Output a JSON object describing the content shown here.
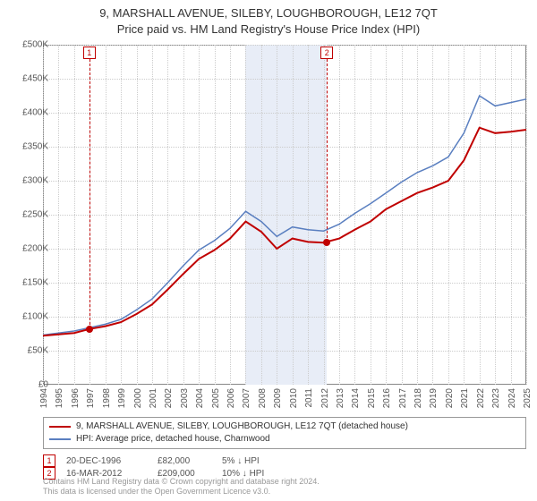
{
  "title_line1": "9, MARSHALL AVENUE, SILEBY, LOUGHBOROUGH, LE12 7QT",
  "title_line2": "Price paid vs. HM Land Registry's House Price Index (HPI)",
  "chart": {
    "type": "line",
    "x_years": [
      1994,
      1995,
      1996,
      1997,
      1998,
      1999,
      2000,
      2001,
      2002,
      2003,
      2004,
      2005,
      2006,
      2007,
      2008,
      2009,
      2010,
      2011,
      2012,
      2013,
      2014,
      2015,
      2016,
      2017,
      2018,
      2019,
      2020,
      2021,
      2022,
      2023,
      2024,
      2025
    ],
    "x_min_year": 1994,
    "x_max_year": 2025,
    "ylim": [
      0,
      500000
    ],
    "ytick_step": 50000,
    "y_ticks": [
      "£0",
      "£50K",
      "£100K",
      "£150K",
      "£200K",
      "£250K",
      "£300K",
      "£350K",
      "£400K",
      "£450K",
      "£500K"
    ],
    "grid_color": "#cccccc",
    "background_color": "#ffffff",
    "border_color": "#888888",
    "title_fontsize": 13,
    "tick_fontsize": 10,
    "shaded_band": {
      "start_year": 2007.0,
      "end_year": 2012.2,
      "color": "#e8edf7"
    },
    "series": {
      "property": {
        "label": "9, MARSHALL AVENUE, SILEBY, LOUGHBOROUGH, LE12 7QT (detached house)",
        "color": "#c00000",
        "line_width": 2,
        "values": [
          72000,
          74000,
          76000,
          82000,
          86000,
          92000,
          104000,
          118000,
          140000,
          163000,
          185000,
          198000,
          215000,
          240000,
          225000,
          200000,
          215000,
          210000,
          209000,
          215000,
          228000,
          240000,
          258000,
          270000,
          282000,
          290000,
          300000,
          330000,
          378000,
          370000,
          372000,
          375000
        ]
      },
      "hpi": {
        "label": "HPI: Average price, detached house, Charnwood",
        "color": "#5a7fc0",
        "line_width": 1.5,
        "values": [
          73000,
          76000,
          79000,
          84000,
          89000,
          96000,
          110000,
          126000,
          150000,
          175000,
          198000,
          212000,
          230000,
          255000,
          240000,
          218000,
          232000,
          228000,
          226000,
          236000,
          252000,
          266000,
          282000,
          298000,
          312000,
          322000,
          335000,
          370000,
          425000,
          410000,
          415000,
          420000
        ]
      }
    },
    "markers": [
      {
        "label": "1",
        "year": 1996.97,
        "value": 82000
      },
      {
        "label": "2",
        "year": 2012.21,
        "value": 209000
      }
    ]
  },
  "legend": {
    "rows": [
      {
        "color": "#c00000",
        "text": "9, MARSHALL AVENUE, SILEBY, LOUGHBOROUGH, LE12 7QT (detached house)"
      },
      {
        "color": "#5a7fc0",
        "text": "HPI: Average price, detached house, Charnwood"
      }
    ]
  },
  "transactions": [
    {
      "num": "1",
      "date": "20-DEC-1996",
      "price": "£82,000",
      "pct": "5%",
      "arrow": "↓",
      "suffix": "HPI"
    },
    {
      "num": "2",
      "date": "16-MAR-2012",
      "price": "£209,000",
      "pct": "10%",
      "arrow": "↓",
      "suffix": "HPI"
    }
  ],
  "footer": {
    "line1": "Contains HM Land Registry data © Crown copyright and database right 2024.",
    "line2": "This data is licensed under the Open Government Licence v3.0."
  }
}
